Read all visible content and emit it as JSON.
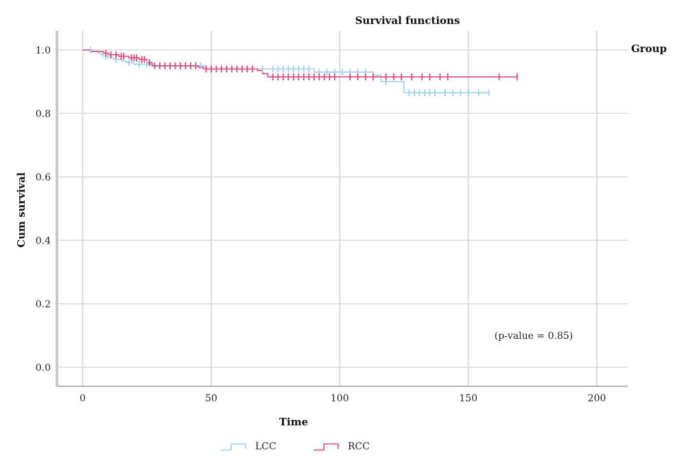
{
  "chart_data": {
    "type": "line",
    "subtype": "kaplan-meier step",
    "title": "Survival functions",
    "xlabel": "Time",
    "ylabel": "Cum survival",
    "xlim": [
      -10,
      212
    ],
    "ylim": [
      -0.06,
      1.06
    ],
    "xticks": [
      0,
      50,
      100,
      150,
      200
    ],
    "yticks": [
      0.0,
      0.2,
      0.4,
      0.6,
      0.8,
      1.0
    ],
    "xtick_labels": [
      "0",
      "50",
      "100",
      "150",
      "200"
    ],
    "ytick_labels": [
      "0.0",
      "0.2",
      "0.4",
      "0.6",
      "0.8",
      "1.0"
    ],
    "grid": true,
    "legend_title": "Group",
    "legend_position": "bottom",
    "annotation": "(p-value = 0.85)",
    "series": [
      {
        "name": "LCC",
        "color": "#9cd0ec",
        "steps": [
          [
            0,
            1.0
          ],
          [
            4,
            0.995
          ],
          [
            6,
            0.99
          ],
          [
            7,
            0.985
          ],
          [
            8,
            0.98
          ],
          [
            10,
            0.975
          ],
          [
            12,
            0.97
          ],
          [
            15,
            0.965
          ],
          [
            17,
            0.96
          ],
          [
            20,
            0.955
          ],
          [
            28,
            0.95
          ],
          [
            48,
            0.94
          ],
          [
            73,
            0.94
          ],
          [
            90,
            0.93
          ],
          [
            113,
            0.92
          ],
          [
            116,
            0.9
          ],
          [
            125,
            0.865
          ],
          [
            158,
            0.865
          ]
        ],
        "censored": [
          [
            3,
            1.0
          ],
          [
            9,
            0.98
          ],
          [
            13,
            0.97
          ],
          [
            18,
            0.96
          ],
          [
            22,
            0.955
          ],
          [
            25,
            0.955
          ],
          [
            30,
            0.95
          ],
          [
            34,
            0.95
          ],
          [
            38,
            0.95
          ],
          [
            42,
            0.95
          ],
          [
            46,
            0.95
          ],
          [
            52,
            0.94
          ],
          [
            56,
            0.94
          ],
          [
            60,
            0.94
          ],
          [
            66,
            0.94
          ],
          [
            70,
            0.94
          ],
          [
            74,
            0.94
          ],
          [
            76,
            0.94
          ],
          [
            78,
            0.94
          ],
          [
            80,
            0.94
          ],
          [
            82,
            0.94
          ],
          [
            84,
            0.94
          ],
          [
            86,
            0.94
          ],
          [
            88,
            0.94
          ],
          [
            92,
            0.93
          ],
          [
            95,
            0.93
          ],
          [
            98,
            0.93
          ],
          [
            101,
            0.93
          ],
          [
            104,
            0.93
          ],
          [
            107,
            0.93
          ],
          [
            110,
            0.93
          ],
          [
            118,
            0.9
          ],
          [
            127,
            0.865
          ],
          [
            129,
            0.865
          ],
          [
            131,
            0.865
          ],
          [
            133,
            0.865
          ],
          [
            135,
            0.865
          ],
          [
            137,
            0.865
          ],
          [
            141,
            0.865
          ],
          [
            144,
            0.865
          ],
          [
            147,
            0.865
          ],
          [
            150,
            0.865
          ],
          [
            154,
            0.865
          ],
          [
            158,
            0.865
          ]
        ]
      },
      {
        "name": "RCC",
        "color": "#e0457a",
        "steps": [
          [
            0,
            1.0
          ],
          [
            3,
            0.995
          ],
          [
            8,
            0.99
          ],
          [
            10,
            0.985
          ],
          [
            14,
            0.98
          ],
          [
            18,
            0.975
          ],
          [
            22,
            0.97
          ],
          [
            25,
            0.96
          ],
          [
            27,
            0.95
          ],
          [
            45,
            0.945
          ],
          [
            47,
            0.94
          ],
          [
            68,
            0.935
          ],
          [
            70,
            0.925
          ],
          [
            72,
            0.915
          ],
          [
            115,
            0.915
          ],
          [
            169,
            0.915
          ]
        ],
        "censored": [
          [
            9,
            0.99
          ],
          [
            11,
            0.985
          ],
          [
            13,
            0.985
          ],
          [
            15,
            0.98
          ],
          [
            16,
            0.98
          ],
          [
            19,
            0.975
          ],
          [
            20,
            0.975
          ],
          [
            21,
            0.975
          ],
          [
            23,
            0.97
          ],
          [
            24,
            0.97
          ],
          [
            26,
            0.96
          ],
          [
            28,
            0.95
          ],
          [
            30,
            0.95
          ],
          [
            32,
            0.95
          ],
          [
            34,
            0.95
          ],
          [
            36,
            0.95
          ],
          [
            38,
            0.95
          ],
          [
            40,
            0.95
          ],
          [
            42,
            0.95
          ],
          [
            44,
            0.95
          ],
          [
            48,
            0.94
          ],
          [
            50,
            0.94
          ],
          [
            52,
            0.94
          ],
          [
            54,
            0.94
          ],
          [
            56,
            0.94
          ],
          [
            58,
            0.94
          ],
          [
            60,
            0.94
          ],
          [
            62,
            0.94
          ],
          [
            64,
            0.94
          ],
          [
            66,
            0.94
          ],
          [
            74,
            0.915
          ],
          [
            76,
            0.915
          ],
          [
            78,
            0.915
          ],
          [
            80,
            0.915
          ],
          [
            82,
            0.915
          ],
          [
            84,
            0.915
          ],
          [
            86,
            0.915
          ],
          [
            88,
            0.915
          ],
          [
            90,
            0.915
          ],
          [
            92,
            0.915
          ],
          [
            94,
            0.915
          ],
          [
            96,
            0.915
          ],
          [
            98,
            0.915
          ],
          [
            104,
            0.915
          ],
          [
            107,
            0.915
          ],
          [
            110,
            0.915
          ],
          [
            113,
            0.915
          ],
          [
            118,
            0.915
          ],
          [
            121,
            0.915
          ],
          [
            124,
            0.915
          ],
          [
            128,
            0.915
          ],
          [
            132,
            0.915
          ],
          [
            135,
            0.915
          ],
          [
            139,
            0.915
          ],
          [
            142,
            0.915
          ],
          [
            162,
            0.915
          ],
          [
            169,
            0.915
          ]
        ]
      }
    ]
  }
}
